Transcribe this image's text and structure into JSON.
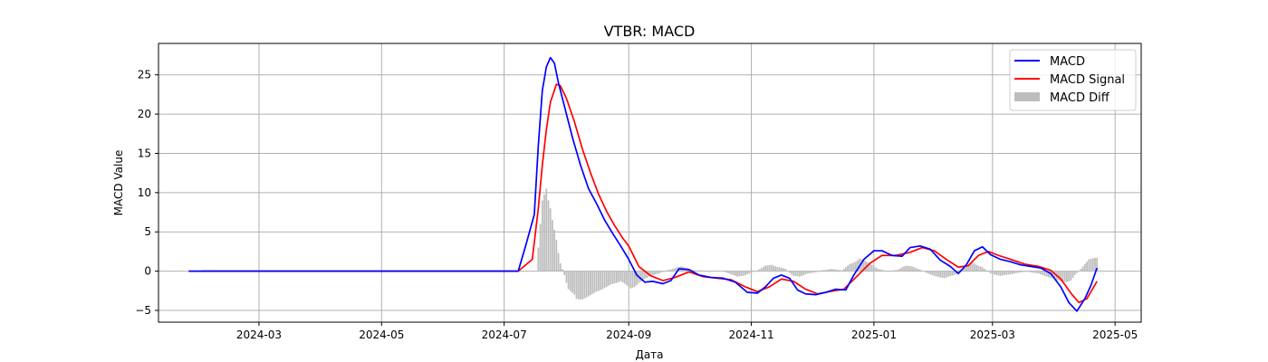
{
  "chart_data": {
    "type": "line",
    "title": "VTBR: MACD",
    "xlabel": "Дата",
    "ylabel": "MACD Value",
    "xlim": [
      "2024-01-11",
      "2025-05-14"
    ],
    "ylim": [
      -6.5,
      29
    ],
    "x_ticks": [
      "2024-03",
      "2024-05",
      "2024-07",
      "2024-09",
      "2024-11",
      "2025-01",
      "2025-03",
      "2025-05"
    ],
    "y_ticks": [
      -5,
      0,
      5,
      10,
      15,
      20,
      25
    ],
    "grid": true,
    "legend_position": "top-right",
    "colors": {
      "macd": "#0000ff",
      "signal": "#ff0000",
      "diff": "#bdbdbd",
      "grid": "#b0b0b0"
    },
    "series": [
      {
        "name": "MACD",
        "type": "line",
        "color": "#0000ff",
        "points": [
          [
            "2024-01-26",
            0
          ],
          [
            "2024-07-08",
            0
          ],
          [
            "2024-07-12",
            3.5
          ],
          [
            "2024-07-16",
            7.2
          ],
          [
            "2024-07-18",
            16
          ],
          [
            "2024-07-20",
            23
          ],
          [
            "2024-07-22",
            26
          ],
          [
            "2024-07-24",
            27.2
          ],
          [
            "2024-07-26",
            26.5
          ],
          [
            "2024-07-28",
            24
          ],
          [
            "2024-07-31",
            21
          ],
          [
            "2024-08-04",
            17
          ],
          [
            "2024-08-08",
            13.5
          ],
          [
            "2024-08-12",
            10.5
          ],
          [
            "2024-08-16",
            8.6
          ],
          [
            "2024-08-20",
            6.5
          ],
          [
            "2024-08-24",
            4.8
          ],
          [
            "2024-08-28",
            3.2
          ],
          [
            "2024-09-01",
            1.5
          ],
          [
            "2024-09-05",
            -0.5
          ],
          [
            "2024-09-09",
            -1.4
          ],
          [
            "2024-09-13",
            -1.3
          ],
          [
            "2024-09-18",
            -1.6
          ],
          [
            "2024-09-22",
            -1.2
          ],
          [
            "2024-09-26",
            0.3
          ],
          [
            "2024-10-01",
            0.2
          ],
          [
            "2024-10-06",
            -0.5
          ],
          [
            "2024-10-12",
            -0.8
          ],
          [
            "2024-10-18",
            -0.9
          ],
          [
            "2024-10-24",
            -1.4
          ],
          [
            "2024-10-30",
            -2.7
          ],
          [
            "2024-11-04",
            -2.8
          ],
          [
            "2024-11-08",
            -2.0
          ],
          [
            "2024-11-12",
            -0.9
          ],
          [
            "2024-11-16",
            -0.5
          ],
          [
            "2024-11-20",
            -0.9
          ],
          [
            "2024-11-24",
            -2.4
          ],
          [
            "2024-11-28",
            -2.9
          ],
          [
            "2024-12-03",
            -3.0
          ],
          [
            "2024-12-08",
            -2.7
          ],
          [
            "2024-12-13",
            -2.3
          ],
          [
            "2024-12-18",
            -2.4
          ],
          [
            "2024-12-22",
            -0.5
          ],
          [
            "2024-12-27",
            1.5
          ],
          [
            "2025-01-01",
            2.6
          ],
          [
            "2025-01-05",
            2.6
          ],
          [
            "2025-01-10",
            2.0
          ],
          [
            "2025-01-15",
            1.9
          ],
          [
            "2025-01-19",
            3.0
          ],
          [
            "2025-01-24",
            3.2
          ],
          [
            "2025-01-29",
            2.8
          ],
          [
            "2025-02-03",
            1.4
          ],
          [
            "2025-02-08",
            0.6
          ],
          [
            "2025-02-12",
            -0.3
          ],
          [
            "2025-02-16",
            0.8
          ],
          [
            "2025-02-20",
            2.6
          ],
          [
            "2025-02-24",
            3.1
          ],
          [
            "2025-02-28",
            2.1
          ],
          [
            "2025-03-05",
            1.5
          ],
          [
            "2025-03-10",
            1.2
          ],
          [
            "2025-03-15",
            0.8
          ],
          [
            "2025-03-20",
            0.6
          ],
          [
            "2025-03-25",
            0.4
          ],
          [
            "2025-03-30",
            -0.3
          ],
          [
            "2025-04-04",
            -2.0
          ],
          [
            "2025-04-08",
            -4.0
          ],
          [
            "2025-04-12",
            -5.1
          ],
          [
            "2025-04-16",
            -3.5
          ],
          [
            "2025-04-19",
            -1.8
          ],
          [
            "2025-04-22",
            0.4
          ]
        ]
      },
      {
        "name": "MACD Signal",
        "type": "line",
        "color": "#ff0000",
        "points": [
          [
            "2024-02-02",
            0
          ],
          [
            "2024-07-08",
            0
          ],
          [
            "2024-07-15",
            1.5
          ],
          [
            "2024-07-18",
            8
          ],
          [
            "2024-07-20",
            13.5
          ],
          [
            "2024-07-22",
            18
          ],
          [
            "2024-07-24",
            21.5
          ],
          [
            "2024-07-27",
            23.8
          ],
          [
            "2024-07-29",
            23.6
          ],
          [
            "2024-08-01",
            22
          ],
          [
            "2024-08-05",
            19
          ],
          [
            "2024-08-09",
            15.5
          ],
          [
            "2024-08-13",
            12.5
          ],
          [
            "2024-08-17",
            9.8
          ],
          [
            "2024-08-21",
            7.6
          ],
          [
            "2024-08-25",
            5.8
          ],
          [
            "2024-08-29",
            4.2
          ],
          [
            "2024-09-01",
            3.2
          ],
          [
            "2024-09-06",
            0.6
          ],
          [
            "2024-09-12",
            -0.6
          ],
          [
            "2024-09-18",
            -1.2
          ],
          [
            "2024-09-24",
            -0.8
          ],
          [
            "2024-10-01",
            -0.1
          ],
          [
            "2024-10-08",
            -0.7
          ],
          [
            "2024-10-15",
            -0.9
          ],
          [
            "2024-10-22",
            -1.1
          ],
          [
            "2024-10-29",
            -2.0
          ],
          [
            "2024-11-04",
            -2.6
          ],
          [
            "2024-11-10",
            -2.0
          ],
          [
            "2024-11-16",
            -1.0
          ],
          [
            "2024-11-22",
            -1.3
          ],
          [
            "2024-11-28",
            -2.3
          ],
          [
            "2024-12-04",
            -2.9
          ],
          [
            "2024-12-10",
            -2.6
          ],
          [
            "2024-12-17",
            -2.3
          ],
          [
            "2024-12-23",
            -0.8
          ],
          [
            "2024-12-30",
            1.0
          ],
          [
            "2025-01-05",
            2.0
          ],
          [
            "2025-01-12",
            2.0
          ],
          [
            "2025-01-19",
            2.4
          ],
          [
            "2025-01-25",
            3.0
          ],
          [
            "2025-01-31",
            2.6
          ],
          [
            "2025-02-06",
            1.5
          ],
          [
            "2025-02-12",
            0.5
          ],
          [
            "2025-02-17",
            0.7
          ],
          [
            "2025-02-22",
            2.0
          ],
          [
            "2025-02-27",
            2.5
          ],
          [
            "2025-03-04",
            2.0
          ],
          [
            "2025-03-10",
            1.5
          ],
          [
            "2025-03-17",
            0.9
          ],
          [
            "2025-03-24",
            0.6
          ],
          [
            "2025-03-30",
            0.1
          ],
          [
            "2025-04-04",
            -1.0
          ],
          [
            "2025-04-09",
            -2.8
          ],
          [
            "2025-04-13",
            -4.0
          ],
          [
            "2025-04-17",
            -3.5
          ],
          [
            "2025-04-22",
            -1.3
          ]
        ]
      },
      {
        "name": "MACD Diff",
        "type": "bar",
        "color": "#bdbdbd",
        "points": [
          [
            "2024-07-18",
            3
          ],
          [
            "2024-07-19",
            6
          ],
          [
            "2024-07-20",
            9
          ],
          [
            "2024-07-22",
            10.5
          ],
          [
            "2024-07-23",
            9
          ],
          [
            "2024-07-24",
            8
          ],
          [
            "2024-07-25",
            6.5
          ],
          [
            "2024-07-27",
            4
          ],
          [
            "2024-07-28",
            2.3
          ],
          [
            "2024-07-29",
            1
          ],
          [
            "2024-07-31",
            -0.5
          ],
          [
            "2024-08-01",
            -1.5
          ],
          [
            "2024-08-02",
            -2.3
          ],
          [
            "2024-08-05",
            -3.0
          ],
          [
            "2024-08-06",
            -3.5
          ],
          [
            "2024-08-07",
            -3.6
          ],
          [
            "2024-08-09",
            -3.6
          ],
          [
            "2024-08-12",
            -3.2
          ],
          [
            "2024-08-14",
            -2.9
          ],
          [
            "2024-08-16",
            -2.6
          ],
          [
            "2024-08-19",
            -2.3
          ],
          [
            "2024-08-21",
            -2.0
          ],
          [
            "2024-08-23",
            -1.7
          ],
          [
            "2024-08-26",
            -1.5
          ],
          [
            "2024-08-28",
            -1.3
          ],
          [
            "2024-08-30",
            -1.6
          ],
          [
            "2024-09-02",
            -2.2
          ],
          [
            "2024-09-04",
            -2.0
          ],
          [
            "2024-09-06",
            -1.5
          ],
          [
            "2024-09-09",
            -1.0
          ],
          [
            "2024-09-11",
            -0.7
          ],
          [
            "2024-09-13",
            -0.5
          ],
          [
            "2024-09-16",
            -0.3
          ],
          [
            "2024-09-18",
            -0.1
          ],
          [
            "2024-09-20",
            0.1
          ],
          [
            "2024-09-23",
            0.3
          ],
          [
            "2024-09-25",
            0.5
          ],
          [
            "2024-09-27",
            0.6
          ],
          [
            "2024-09-30",
            0.4
          ],
          [
            "2024-10-02",
            0.2
          ],
          [
            "2024-10-04",
            0.1
          ],
          [
            "2024-10-07",
            0.1
          ],
          [
            "2024-10-09",
            0.05
          ],
          [
            "2024-10-11",
            -0.1
          ],
          [
            "2024-10-14",
            -0.05
          ],
          [
            "2024-10-16",
            0.05
          ],
          [
            "2024-10-18",
            -0.05
          ],
          [
            "2024-10-21",
            -0.3
          ],
          [
            "2024-10-23",
            -0.5
          ],
          [
            "2024-10-25",
            -0.7
          ],
          [
            "2024-10-28",
            -0.6
          ],
          [
            "2024-10-30",
            -0.4
          ],
          [
            "2024-11-01",
            -0.2
          ],
          [
            "2024-11-04",
            0.1
          ],
          [
            "2024-11-06",
            0.4
          ],
          [
            "2024-11-08",
            0.7
          ],
          [
            "2024-11-11",
            0.8
          ],
          [
            "2024-11-13",
            0.6
          ],
          [
            "2024-11-15",
            0.5
          ],
          [
            "2024-11-18",
            0.3
          ],
          [
            "2024-11-20",
            -0.2
          ],
          [
            "2024-11-22",
            -0.6
          ],
          [
            "2024-11-25",
            -0.7
          ],
          [
            "2024-11-27",
            -0.5
          ],
          [
            "2024-11-29",
            -0.3
          ],
          [
            "2024-12-02",
            -0.2
          ],
          [
            "2024-12-04",
            -0.1
          ],
          [
            "2024-12-06",
            0.1
          ],
          [
            "2024-12-09",
            0.2
          ],
          [
            "2024-12-11",
            0.3
          ],
          [
            "2024-12-13",
            0.2
          ],
          [
            "2024-12-16",
            0.1
          ],
          [
            "2024-12-18",
            0.5
          ],
          [
            "2024-12-20",
            0.9
          ],
          [
            "2024-12-23",
            1.2
          ],
          [
            "2024-12-25",
            1.6
          ],
          [
            "2024-12-27",
            1.4
          ],
          [
            "2024-12-30",
            1.0
          ],
          [
            "2025-01-01",
            0.6
          ],
          [
            "2025-01-03",
            0.3
          ],
          [
            "2025-01-06",
            0.1
          ],
          [
            "2025-01-08",
            -0.1
          ],
          [
            "2025-01-10",
            0.05
          ],
          [
            "2025-01-13",
            0.2
          ],
          [
            "2025-01-15",
            0.5
          ],
          [
            "2025-01-17",
            0.7
          ],
          [
            "2025-01-20",
            0.6
          ],
          [
            "2025-01-22",
            0.4
          ],
          [
            "2025-01-24",
            0.2
          ],
          [
            "2025-01-27",
            -0.2
          ],
          [
            "2025-01-29",
            -0.4
          ],
          [
            "2025-01-31",
            -0.6
          ],
          [
            "2025-02-03",
            -0.8
          ],
          [
            "2025-02-05",
            -0.9
          ],
          [
            "2025-02-07",
            -0.7
          ],
          [
            "2025-02-10",
            -0.5
          ],
          [
            "2025-02-12",
            -0.2
          ],
          [
            "2025-02-14",
            0.3
          ],
          [
            "2025-02-17",
            0.7
          ],
          [
            "2025-02-19",
            1.1
          ],
          [
            "2025-02-21",
            0.8
          ],
          [
            "2025-02-24",
            0.5
          ],
          [
            "2025-02-26",
            0.1
          ],
          [
            "2025-02-28",
            -0.3
          ],
          [
            "2025-03-03",
            -0.5
          ],
          [
            "2025-03-05",
            -0.6
          ],
          [
            "2025-03-07",
            -0.5
          ],
          [
            "2025-03-10",
            -0.4
          ],
          [
            "2025-03-12",
            -0.3
          ],
          [
            "2025-03-14",
            -0.2
          ],
          [
            "2025-03-17",
            -0.1
          ],
          [
            "2025-03-19",
            -0.1
          ],
          [
            "2025-03-21",
            -0.2
          ],
          [
            "2025-03-24",
            -0.3
          ],
          [
            "2025-03-26",
            -0.5
          ],
          [
            "2025-03-28",
            -0.7
          ],
          [
            "2025-03-31",
            -0.9
          ],
          [
            "2025-04-02",
            -1.1
          ],
          [
            "2025-04-04",
            -1.3
          ],
          [
            "2025-04-07",
            -1.4
          ],
          [
            "2025-04-09",
            -1.2
          ],
          [
            "2025-04-11",
            -0.5
          ],
          [
            "2025-04-14",
            0.3
          ],
          [
            "2025-04-15",
            0.6
          ],
          [
            "2025-04-16",
            0.9
          ],
          [
            "2025-04-17",
            1.2
          ],
          [
            "2025-04-18",
            1.5
          ],
          [
            "2025-04-21",
            1.7
          ],
          [
            "2025-04-22",
            1.7
          ]
        ]
      }
    ]
  }
}
